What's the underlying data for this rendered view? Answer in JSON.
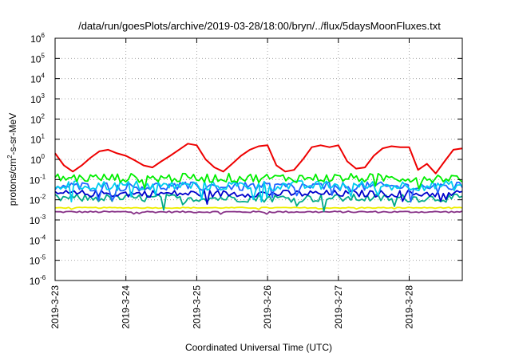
{
  "chart_data": {
    "type": "line",
    "title": "/data/run/goesPlots/archive/2019-03-28/18:00/bryn/../flux/5daysMoonFluxes.txt",
    "xlabel": "Coordinated Universal Time (UTC)",
    "ylabel_parts": [
      "protons/cm",
      "2",
      "-s-sr-MeV"
    ],
    "x_range": [
      "2019-03-23",
      "2019-03-28 18:00"
    ],
    "x_tick_labels": [
      "2019-3-23",
      "2019-3-24",
      "2019-3-25",
      "2019-3-26",
      "2019-3-27",
      "2019-3-28"
    ],
    "y_scale": "log",
    "y_range": [
      1e-06,
      1000000.0
    ],
    "y_ticks": [
      {
        "base": "10",
        "exp": "-6"
      },
      {
        "base": "10",
        "exp": "-5"
      },
      {
        "base": "10",
        "exp": "-4"
      },
      {
        "base": "10",
        "exp": "-3"
      },
      {
        "base": "10",
        "exp": "-2"
      },
      {
        "base": "10",
        "exp": "-1"
      },
      {
        "base": "10",
        "exp": "0"
      },
      {
        "base": "10",
        "exp": "1"
      },
      {
        "base": "10",
        "exp": "2"
      },
      {
        "base": "10",
        "exp": "3"
      },
      {
        "base": "10",
        "exp": "4"
      },
      {
        "base": "10",
        "exp": "5"
      },
      {
        "base": "10",
        "exp": "6"
      }
    ],
    "grid": true,
    "legend": "none",
    "series": [
      {
        "color": "#ee0000",
        "points": [
          [
            "2019-03-23 00:00",
            2.0
          ],
          [
            "2019-03-23 03:00",
            0.5
          ],
          [
            "2019-03-23 06:00",
            0.25
          ],
          [
            "2019-03-23 09:00",
            0.5
          ],
          [
            "2019-03-23 12:00",
            1.2
          ],
          [
            "2019-03-23 15:00",
            2.5
          ],
          [
            "2019-03-23 18:00",
            3.0
          ],
          [
            "2019-03-23 21:00",
            2.0
          ],
          [
            "2019-03-24 00:00",
            1.5
          ],
          [
            "2019-03-24 03:00",
            0.9
          ],
          [
            "2019-03-24 06:00",
            0.5
          ],
          [
            "2019-03-24 09:00",
            0.4
          ],
          [
            "2019-03-24 12:00",
            0.8
          ],
          [
            "2019-03-24 15:00",
            1.5
          ],
          [
            "2019-03-24 18:00",
            3.0
          ],
          [
            "2019-03-24 21:00",
            6.0
          ],
          [
            "2019-03-25 00:00",
            5.0
          ],
          [
            "2019-03-25 03:00",
            1.0
          ],
          [
            "2019-03-25 06:00",
            0.4
          ],
          [
            "2019-03-25 09:00",
            0.25
          ],
          [
            "2019-03-25 12:00",
            0.6
          ],
          [
            "2019-03-25 15:00",
            1.5
          ],
          [
            "2019-03-25 18:00",
            3.0
          ],
          [
            "2019-03-25 21:00",
            4.5
          ],
          [
            "2019-03-26 00:00",
            5.0
          ],
          [
            "2019-03-26 03:00",
            0.5
          ],
          [
            "2019-03-26 06:00",
            0.25
          ],
          [
            "2019-03-26 09:00",
            0.3
          ],
          [
            "2019-03-26 12:00",
            1.0
          ],
          [
            "2019-03-26 15:00",
            4.0
          ],
          [
            "2019-03-26 18:00",
            5.0
          ],
          [
            "2019-03-26 21:00",
            4.0
          ],
          [
            "2019-03-27 00:00",
            5.0
          ],
          [
            "2019-03-27 03:00",
            0.8
          ],
          [
            "2019-03-27 06:00",
            0.35
          ],
          [
            "2019-03-27 09:00",
            0.4
          ],
          [
            "2019-03-27 12:00",
            1.5
          ],
          [
            "2019-03-27 15:00",
            3.5
          ],
          [
            "2019-03-27 18:00",
            4.5
          ],
          [
            "2019-03-27 21:00",
            4.0
          ],
          [
            "2019-03-28 00:00",
            4.0
          ],
          [
            "2019-03-28 03:00",
            0.3
          ],
          [
            "2019-03-28 06:00",
            0.6
          ],
          [
            "2019-03-28 09:00",
            0.2
          ],
          [
            "2019-03-28 12:00",
            0.8
          ],
          [
            "2019-03-28 15:00",
            3.0
          ],
          [
            "2019-03-28 18:00",
            3.5
          ]
        ]
      },
      {
        "color": "#00ee00",
        "level": 0.12,
        "spread": 0.45
      },
      {
        "color": "#00ccee",
        "level": 0.05,
        "spread": 0.5
      },
      {
        "color": "#2266ff",
        "level": 0.045,
        "spread": 0.45
      },
      {
        "color": "#0000cc",
        "level": 0.02,
        "spread": 0.35
      },
      {
        "color": "#00aa88",
        "level": 0.012,
        "spread": 0.4
      },
      {
        "color": "#eeee00",
        "level": 0.004,
        "spread": 0.05
      },
      {
        "color": "#883388",
        "level": 0.0025,
        "spread": 0.08
      }
    ]
  }
}
